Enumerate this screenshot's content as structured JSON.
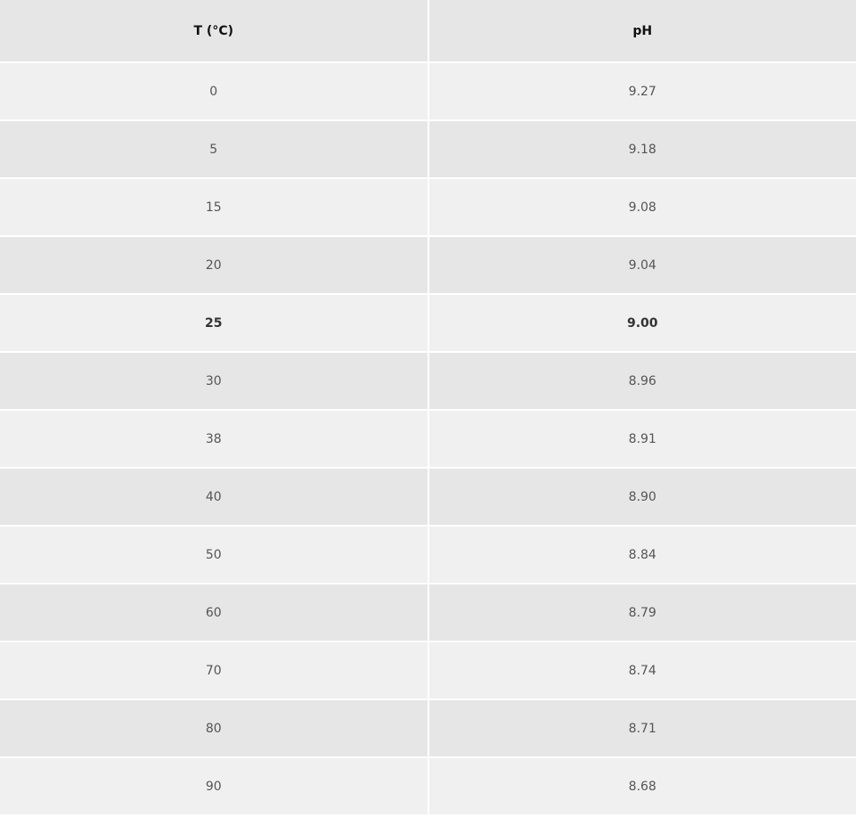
{
  "table": {
    "headers": [
      "T (°C)",
      "pH"
    ],
    "rows": [
      {
        "t": "0",
        "ph": "9.27"
      },
      {
        "t": "5",
        "ph": "9.18"
      },
      {
        "t": "15",
        "ph": "9.08"
      },
      {
        "t": "20",
        "ph": "9.04"
      },
      {
        "t": "25",
        "ph": "9.00",
        "bold": true
      },
      {
        "t": "30",
        "ph": "8.96"
      },
      {
        "t": "38",
        "ph": "8.91"
      },
      {
        "t": "40",
        "ph": "8.90"
      },
      {
        "t": "50",
        "ph": "8.84"
      },
      {
        "t": "60",
        "ph": "8.79"
      },
      {
        "t": "70",
        "ph": "8.74"
      },
      {
        "t": "80",
        "ph": "8.71"
      },
      {
        "t": "90",
        "ph": "8.68"
      }
    ]
  }
}
